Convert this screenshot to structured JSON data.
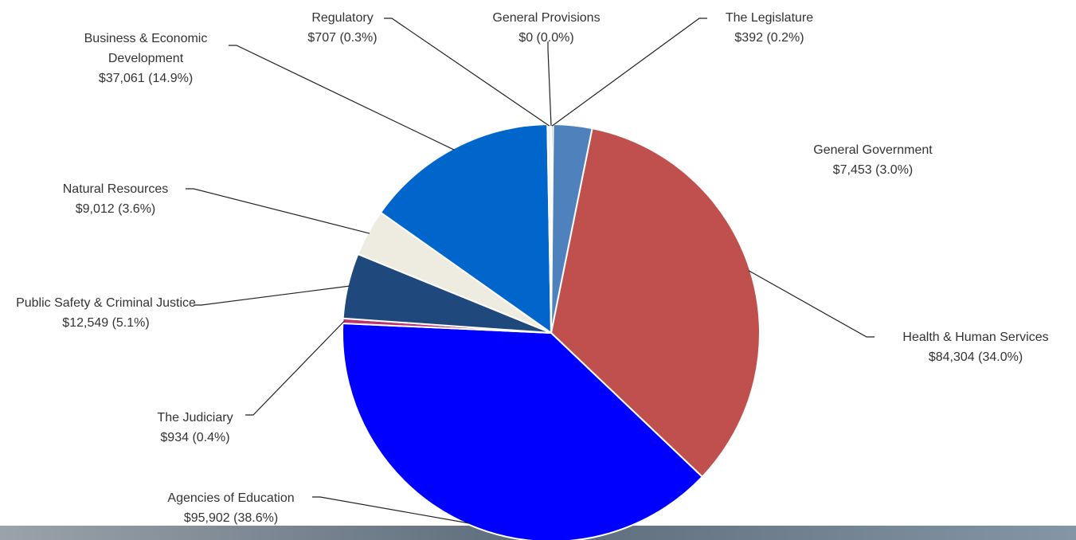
{
  "chart_data": {
    "type": "pie",
    "categories": [
      "The Legislature",
      "General Government",
      "Health & Human Services",
      "Agencies of Education",
      "The Judiciary",
      "Public Safety & Criminal Justice",
      "Natural Resources",
      "Business & Economic Development",
      "Regulatory",
      "General Provisions"
    ],
    "values": [
      392,
      7453,
      84304,
      95902,
      934,
      12549,
      9012,
      37061,
      707,
      0
    ],
    "value_labels": [
      "$392 (0.2%)",
      "$7,453 (3.0%)",
      "$84,304 (34.0%)",
      "$95,902 (38.6%)",
      "$934 (0.4%)",
      "$12,549 (5.1%)",
      "$9,012 (3.6%)",
      "$37,061 (14.9%)",
      "$707 (0.3%)",
      "$0 (0.0%)"
    ],
    "colors": [
      "#8db3e2",
      "#4f81bd",
      "#c0504d",
      "#0000ff",
      "#c0306a",
      "#1f497d",
      "#eeece1",
      "#0066cc",
      "#f2f2f2",
      "#d9d9d9"
    ]
  }
}
